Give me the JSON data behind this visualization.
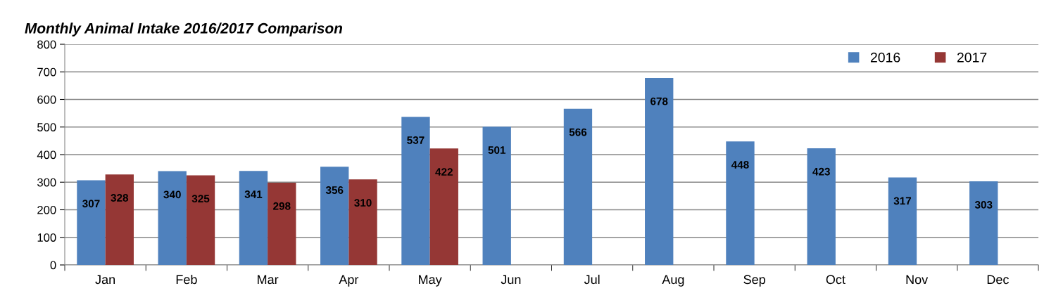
{
  "chart_data": {
    "type": "bar",
    "title": "Monthly Animal Intake 2016/2017 Comparison",
    "categories": [
      "Jan",
      "Feb",
      "Mar",
      "Apr",
      "May",
      "Jun",
      "Jul",
      "Aug",
      "Sep",
      "Oct",
      "Nov",
      "Dec"
    ],
    "series": [
      {
        "name": "2016",
        "color": "#4f81bd",
        "values": [
          307,
          340,
          341,
          356,
          537,
          501,
          566,
          678,
          448,
          423,
          317,
          303
        ]
      },
      {
        "name": "2017",
        "color": "#953735",
        "values": [
          328,
          325,
          298,
          310,
          422,
          null,
          null,
          null,
          null,
          null,
          null,
          null
        ]
      }
    ],
    "ylim": [
      0,
      800
    ],
    "yticks": [
      0,
      100,
      200,
      300,
      400,
      500,
      600,
      700,
      800
    ],
    "grid": "y",
    "legend": "top right",
    "data_labels": true
  }
}
